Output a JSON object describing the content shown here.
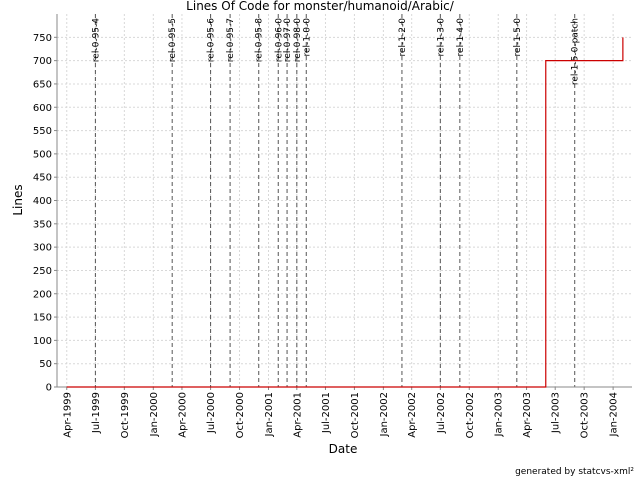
{
  "chart_data": {
    "type": "line",
    "title": "Lines Of Code for monster/humanoid/Arabic/",
    "x_label": "Date",
    "y_label": "Lines",
    "footer": "generated by statcvs-xml²",
    "step": "after",
    "x": [
      "1999-04",
      "2003-06",
      "2004-02"
    ],
    "series": [
      {
        "name": "Lines",
        "color": "#cc0000",
        "values": [
          0,
          700,
          750
        ]
      }
    ],
    "xlim": [
      "1999-03",
      "2004-03"
    ],
    "xticks": [
      {
        "value": "1999-04",
        "label": "Apr-1999"
      },
      {
        "value": "1999-07",
        "label": "Jul-1999"
      },
      {
        "value": "1999-10",
        "label": "Oct-1999"
      },
      {
        "value": "2000-01",
        "label": "Jan-2000"
      },
      {
        "value": "2000-04",
        "label": "Apr-2000"
      },
      {
        "value": "2000-07",
        "label": "Jul-2000"
      },
      {
        "value": "2000-10",
        "label": "Oct-2000"
      },
      {
        "value": "2001-01",
        "label": "Jan-2001"
      },
      {
        "value": "2001-04",
        "label": "Apr-2001"
      },
      {
        "value": "2001-07",
        "label": "Jul-2001"
      },
      {
        "value": "2001-10",
        "label": "Oct-2001"
      },
      {
        "value": "2002-01",
        "label": "Jan-2002"
      },
      {
        "value": "2002-04",
        "label": "Apr-2002"
      },
      {
        "value": "2002-07",
        "label": "Jul-2002"
      },
      {
        "value": "2002-10",
        "label": "Oct-2002"
      },
      {
        "value": "2003-01",
        "label": "Jan-2003"
      },
      {
        "value": "2003-04",
        "label": "Apr-2003"
      },
      {
        "value": "2003-07",
        "label": "Jul-2003"
      },
      {
        "value": "2003-10",
        "label": "Oct-2003"
      },
      {
        "value": "2004-01",
        "label": "Jan-2004"
      }
    ],
    "ylim": [
      0,
      800
    ],
    "yticks": [
      0,
      50,
      100,
      150,
      200,
      250,
      300,
      350,
      400,
      450,
      500,
      550,
      600,
      650,
      700,
      750
    ],
    "grid": true,
    "tags": [
      {
        "date": "1999-07",
        "label": "rel-0-95-4"
      },
      {
        "date": "2000-03",
        "label": "rel-0-95-5"
      },
      {
        "date": "2000-07",
        "label": "rel-0-95-6"
      },
      {
        "date": "2000-09",
        "label": "rel-0-95-7"
      },
      {
        "date": "2000-12",
        "label": "rel-0-95-8"
      },
      {
        "date": "2001-02",
        "label": "rel-0-96-0"
      },
      {
        "date": "2001-03",
        "label": "rel-0-97-0"
      },
      {
        "date": "2001-04",
        "label": "rel-0-98-0"
      },
      {
        "date": "2001-05",
        "label": "rel-1-0-0"
      },
      {
        "date": "2002-03",
        "label": "rel-1-2-0"
      },
      {
        "date": "2002-07",
        "label": "rel-1-3-0"
      },
      {
        "date": "2002-09",
        "label": "rel-1-4-0"
      },
      {
        "date": "2003-03",
        "label": "rel-1-5-0"
      },
      {
        "date": "2003-09",
        "label": "rel-1-5-0-patch"
      }
    ]
  }
}
